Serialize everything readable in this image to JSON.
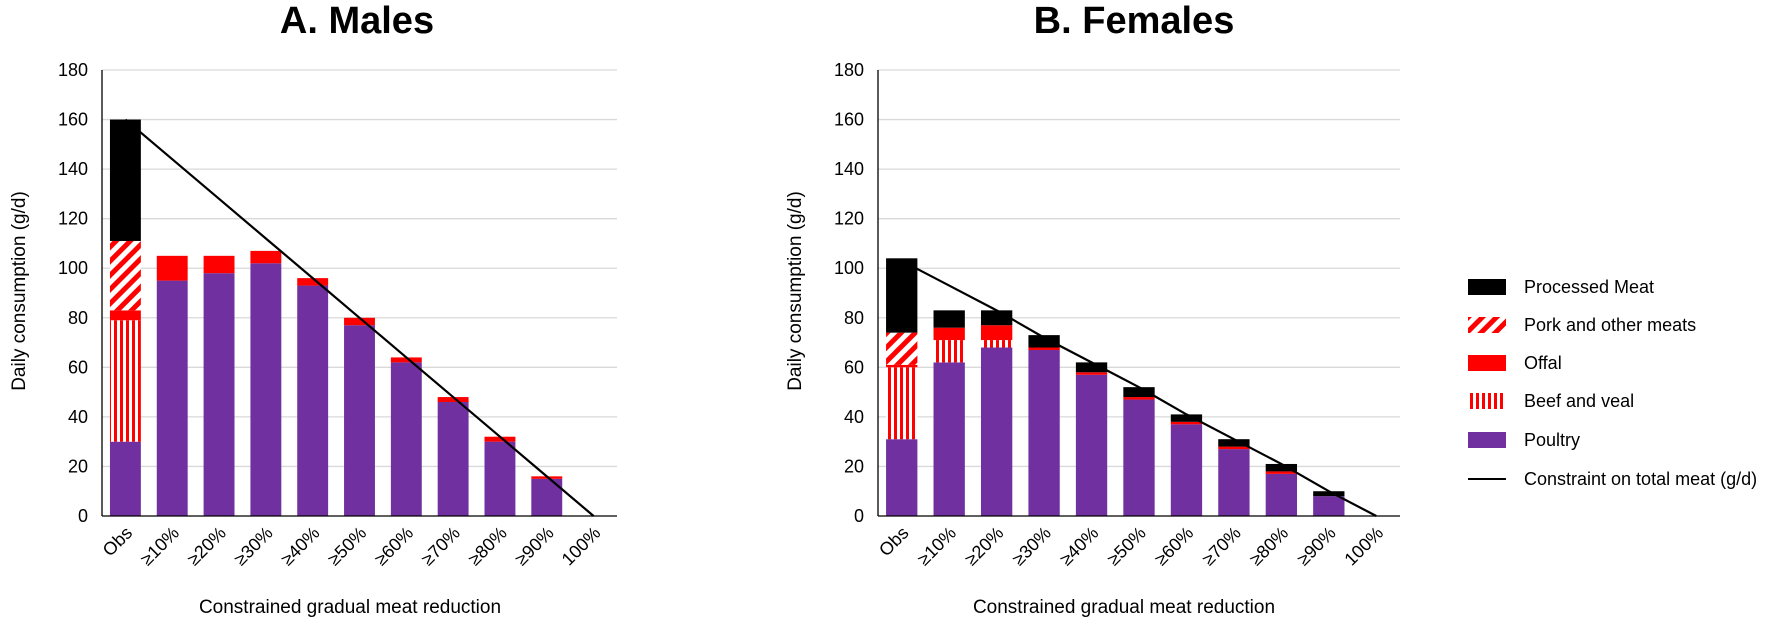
{
  "chart_data": [
    {
      "type": "bar",
      "stacked": true,
      "title": "A. Males",
      "xlabel": "Constrained gradual meat reduction",
      "ylabel": "Daily consumption (g/d)",
      "ylim": [
        0,
        180
      ],
      "yticks": [
        "0",
        "20",
        "40",
        "60",
        "80",
        "100",
        "120",
        "140",
        "160",
        "180"
      ],
      "grid": true,
      "categories": [
        "Obs",
        "≥10%",
        "≥20%",
        "≥30%",
        "≥40%",
        "≥50%",
        "≥60%",
        "≥70%",
        "≥80%",
        "≥90%",
        "100%"
      ],
      "series": [
        {
          "name": "Poultry",
          "values": [
            30,
            95,
            98,
            102,
            93,
            77,
            62,
            46,
            30,
            15,
            0
          ]
        },
        {
          "name": "Beef and veal",
          "values": [
            49,
            0,
            0,
            0,
            0,
            0,
            0,
            0,
            0,
            0,
            0
          ]
        },
        {
          "name": "Offal",
          "values": [
            4,
            10,
            7,
            5,
            3,
            3,
            2,
            2,
            2,
            1,
            0
          ]
        },
        {
          "name": "Pork and other meats",
          "values": [
            28,
            0,
            0,
            0,
            0,
            0,
            0,
            0,
            0,
            0,
            0
          ]
        },
        {
          "name": "Processed Meat",
          "values": [
            49,
            0,
            0,
            0,
            0,
            0,
            0,
            0,
            0,
            0,
            0
          ]
        }
      ],
      "line": {
        "name": "Constraint on total meat (g/d)",
        "values": [
          160,
          144,
          128,
          112,
          96,
          80,
          64,
          48,
          32,
          16,
          0
        ]
      }
    },
    {
      "type": "bar",
      "stacked": true,
      "title": "B. Females",
      "xlabel": "Constrained gradual meat reduction",
      "ylabel": "Daily consumption (g/d)",
      "ylim": [
        0,
        180
      ],
      "yticks": [
        "0",
        "20",
        "40",
        "60",
        "80",
        "100",
        "120",
        "140",
        "160",
        "180"
      ],
      "grid": true,
      "categories": [
        "Obs",
        "≥10%",
        "≥20%",
        "≥30%",
        "≥40%",
        "≥50%",
        "≥60%",
        "≥70%",
        "≥80%",
        "≥90%",
        "100%"
      ],
      "series": [
        {
          "name": "Poultry",
          "values": [
            31,
            62,
            68,
            67,
            57,
            47,
            37,
            27,
            17,
            8,
            0
          ]
        },
        {
          "name": "Beef and veal",
          "values": [
            29,
            9,
            3,
            0,
            0,
            0,
            0,
            0,
            0,
            0,
            0
          ]
        },
        {
          "name": "Offal",
          "values": [
            1,
            5,
            6,
            1,
            1,
            1,
            1,
            1,
            1,
            0,
            0
          ]
        },
        {
          "name": "Pork and other meats",
          "values": [
            13,
            0,
            0,
            0,
            0,
            0,
            0,
            0,
            0,
            0,
            0
          ]
        },
        {
          "name": "Processed Meat",
          "values": [
            30,
            7,
            6,
            5,
            4,
            4,
            3,
            3,
            3,
            2,
            0
          ]
        }
      ],
      "line": {
        "name": "Constraint on total meat (g/d)",
        "values": [
          103,
          93,
          83,
          72,
          62,
          52,
          41,
          31,
          21,
          10,
          0
        ]
      }
    }
  ],
  "legend": {
    "placement": "right",
    "items": [
      {
        "label": "Processed Meat",
        "style": "solid",
        "color": "#000000"
      },
      {
        "label": "Pork and other meats",
        "style": "diagonal-hatch",
        "color": "#ff0000"
      },
      {
        "label": "Offal",
        "style": "solid",
        "color": "#ff0000"
      },
      {
        "label": "Beef and veal",
        "style": "vertical-stripes",
        "color": "#ff0000"
      },
      {
        "label": "Poultry",
        "style": "solid",
        "color": "#7030a0"
      },
      {
        "label": "Constraint on total meat (g/d)",
        "style": "line",
        "color": "#000000"
      }
    ]
  },
  "colors": {
    "Poultry": "#7030a0",
    "Beef and veal": "#ff0000",
    "Offal": "#ff0000",
    "Pork and other meats": "#ff0000",
    "Processed Meat": "#000000",
    "grid": "#d9d9d9",
    "axis": "#000000"
  }
}
